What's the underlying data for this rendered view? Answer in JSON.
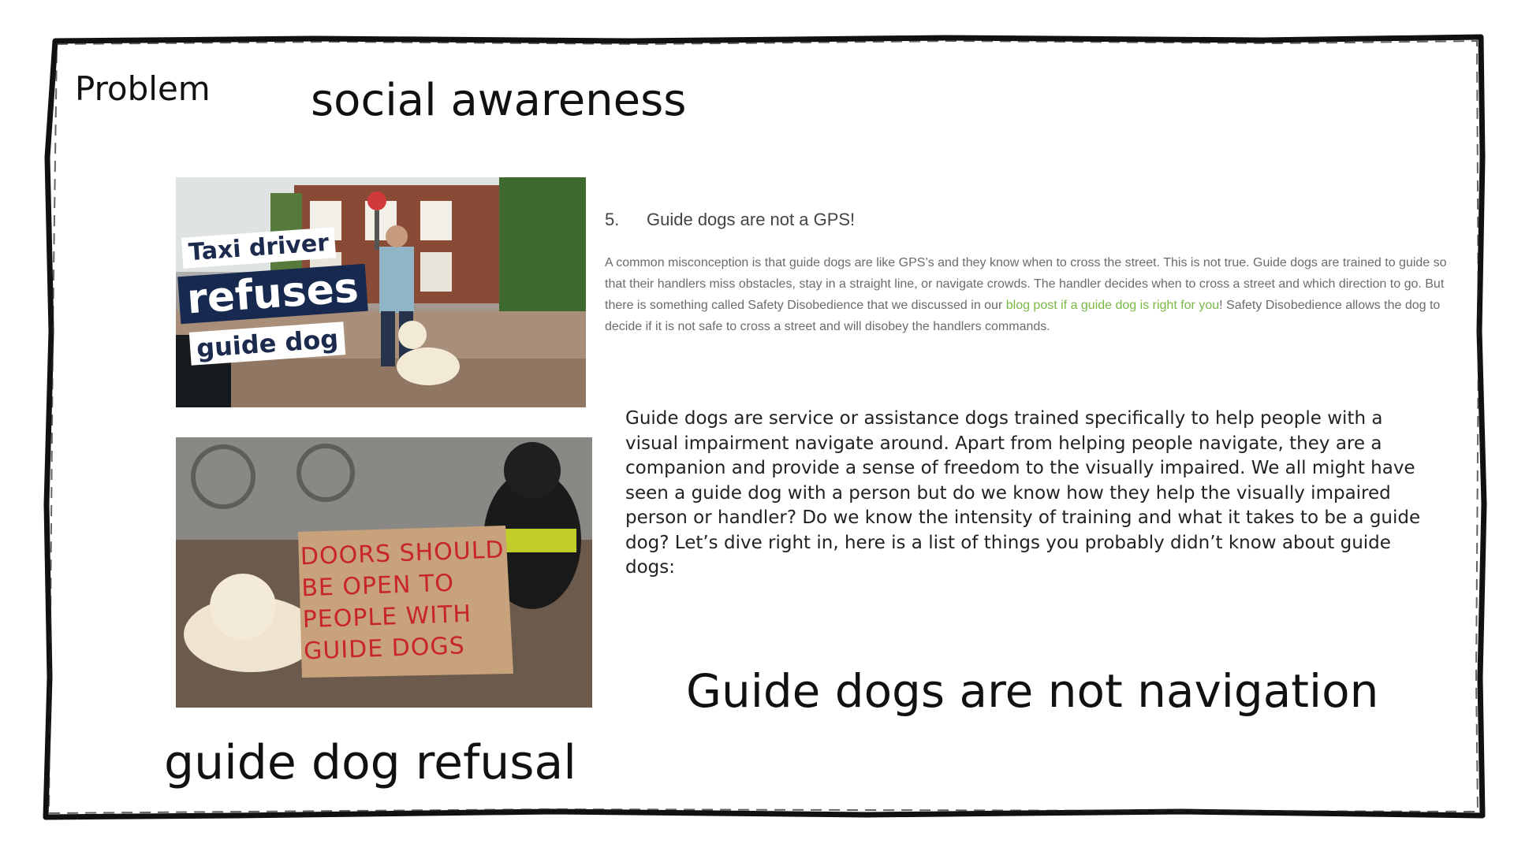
{
  "slide": {
    "problem_label": "Problem",
    "social_label": "social awareness",
    "caption_navigation": "Guide dogs are not navigation",
    "caption_refusal": "guide dog refusal"
  },
  "image_taxi": {
    "line1": "Taxi driver",
    "line2": "refuses",
    "line3": "guide dog"
  },
  "image_sign": {
    "lines": [
      "DOORS SHOULD",
      "BE OPEN TO",
      "PEOPLE WITH",
      "GUIDE DOGS"
    ]
  },
  "gps_section": {
    "number": "5.",
    "heading": "Guide dogs are not a GPS!",
    "text_before_link": "A common misconception is that guide dogs are like GPS’s and they know when to cross the street. This is not true. Guide dogs are trained to guide so that their handlers miss obstacles, stay in a straight line, or navigate crowds. The handler decides when to cross a street and which direction to go. But there is something called Safety Disobedience that we discussed in our ",
    "link_text": "blog post if a guide dog is right for you",
    "text_after_link": "! Safety Disobedience allows the dog to decide if it is not safe to cross a street and will disobey the handlers commands."
  },
  "guide_paragraph": "Guide dogs are service or assistance dogs trained specifically to help people with a visual impairment navigate around. Apart from helping people navigate, they are a companion and provide a sense of freedom to the visually impaired. We all might have seen a guide dog with a person but do we know how they help the visually impaired person or handler? Do we know the intensity of training and what it takes to be a guide dog? Let’s dive right in, here is a list of things you probably didn’t know about guide dogs:",
  "colors": {
    "link_green": "#7ab845",
    "banner_navy": "#17294f",
    "sign_red": "#c8242b",
    "frame": "#111111"
  }
}
